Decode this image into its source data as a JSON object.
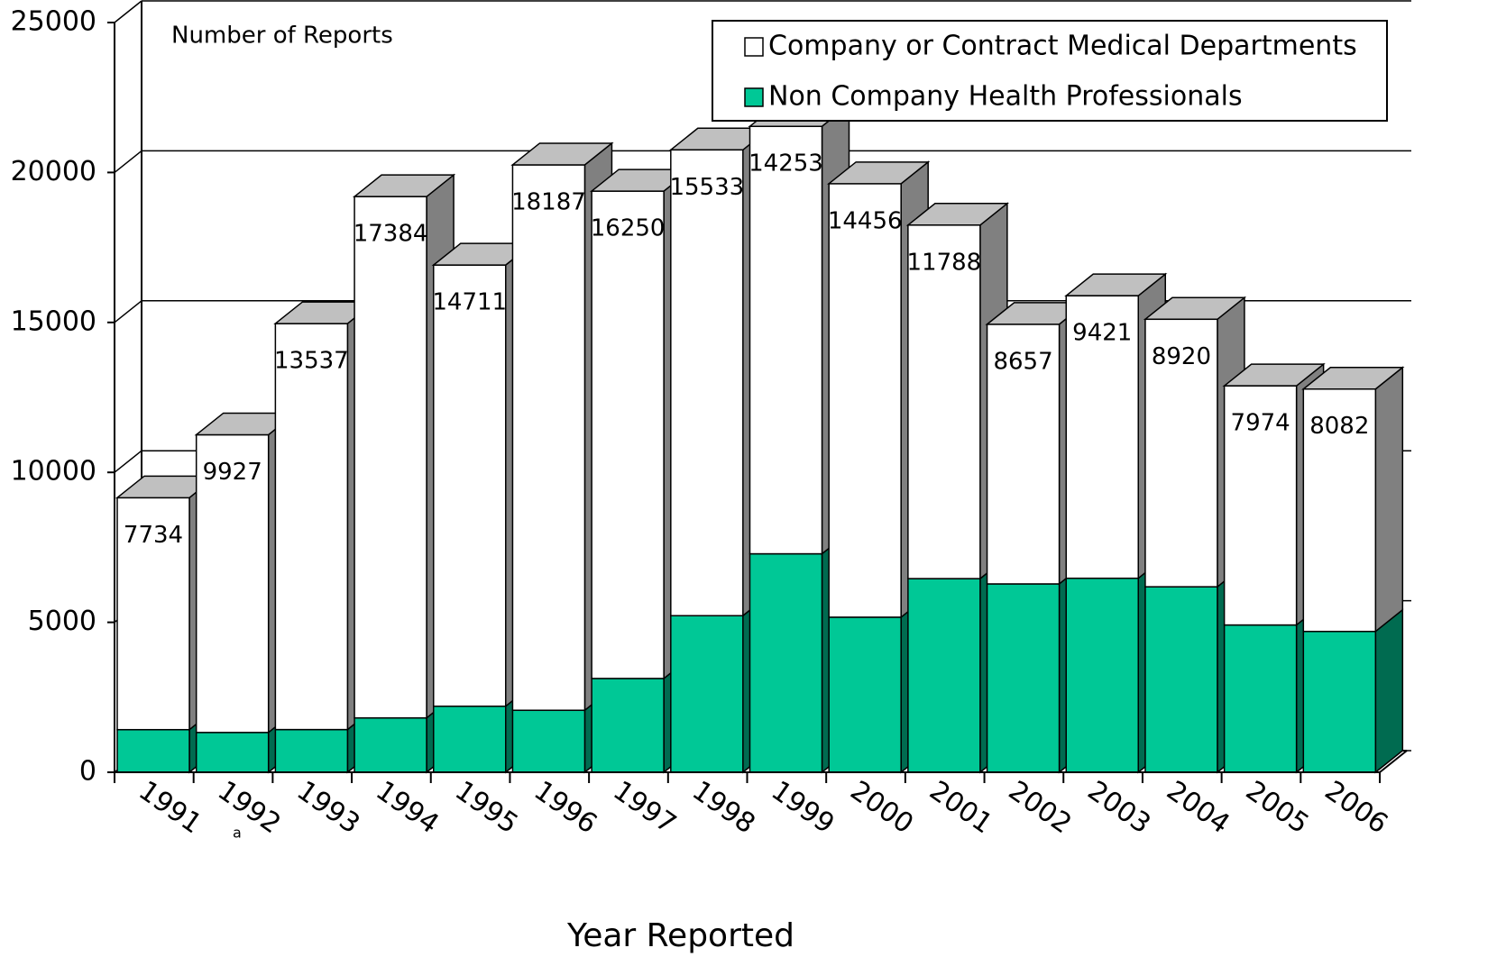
{
  "chart_data": {
    "type": "bar3d_stacked",
    "y_label": "Number of Reports",
    "x_label": "Year Reported",
    "categories": [
      "1991",
      "1992",
      "1993",
      "1994",
      "1995",
      "1996",
      "1997",
      "1998",
      "1999",
      "2000",
      "2001",
      "2002",
      "2003",
      "2004",
      "2005",
      "2006"
    ],
    "category_note": "a",
    "series": [
      {
        "name": "Non Company Health Professionals",
        "color": "#00c896",
        "side_color": "#006b50",
        "values": [
          1421,
          1327,
          1424,
          1812,
          2202,
          2067,
          3128,
          5221,
          7285,
          5171,
          6457,
          6281,
          6469,
          6185,
          4911,
          4696
        ]
      },
      {
        "name": "Company or Contract Medical Departments",
        "color": "#ffffff",
        "side_color": "#808080",
        "values": [
          7734,
          9927,
          13537,
          17384,
          14711,
          18187,
          16250,
          15533,
          14253,
          14456,
          11788,
          8657,
          9421,
          8920,
          7974,
          8082
        ]
      }
    ],
    "legend_order": [
      1,
      0
    ],
    "ylim": [
      0,
      25000
    ],
    "yticks": [
      0,
      5000,
      10000,
      15000,
      20000,
      25000
    ],
    "grid": true
  }
}
